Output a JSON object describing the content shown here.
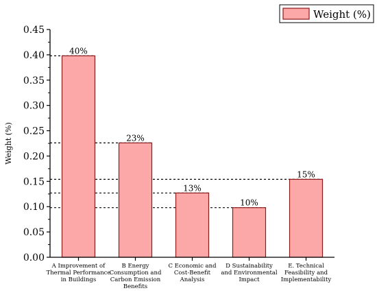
{
  "chart_data": {
    "type": "bar",
    "categories": [
      [
        "A Improvement of",
        "Thermal Performance",
        "in Buildings"
      ],
      [
        "B Energy",
        "Consumption and",
        "Carbon Emission",
        "Benefits"
      ],
      [
        "C Economic and",
        "Cost-Benefit",
        "Analysis"
      ],
      [
        "D Sustainability",
        "and Environmental",
        "Impact"
      ],
      [
        "E. Technical",
        "Feasibility and",
        "Implementability"
      ]
    ],
    "series": [
      {
        "name": "Weight (%)",
        "values": [
          0.398,
          0.226,
          0.127,
          0.098,
          0.154
        ]
      }
    ],
    "data_labels": [
      "40%",
      "23%",
      "13%",
      "10%",
      "15%"
    ],
    "ylabel": "Weight (%)",
    "ylim": [
      0,
      0.45
    ],
    "yticks": [
      0.0,
      0.05,
      0.1,
      0.15,
      0.2,
      0.25,
      0.3,
      0.35,
      0.4,
      0.45
    ],
    "grid": false,
    "reference_lines": "dashed horizontal lines at each bar top",
    "legend_position": "top-right",
    "colors": {
      "bar_fill": "#fca8a8",
      "bar_stroke": "#8b1a1a",
      "axis": "#000000"
    }
  }
}
